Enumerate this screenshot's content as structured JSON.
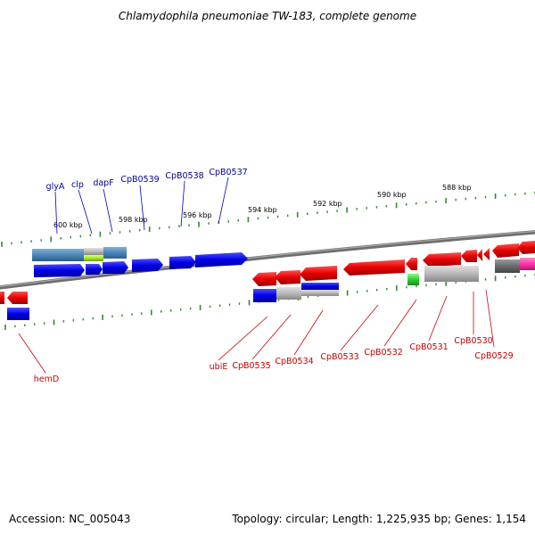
{
  "title": "Chlamydophila pneumoniae TW-183, complete genome",
  "footer": {
    "accession": "Accession: NC_005043",
    "topology": "Topology: circular; Length: 1,225,935 bp; Genes: 1,154"
  },
  "colors": {
    "forward": "#0000e6",
    "reverse": "#e60000",
    "steel": "#4a86b8",
    "gray": "#b8b8b8",
    "dark_gray": "#6a6a6a",
    "green": "#33cc33",
    "magenta": "#ff33aa",
    "tick": "#2e8b2e",
    "axis": "#808080"
  },
  "kbp_labels": [
    "600 kbp",
    "598 kbp",
    "596 kbp",
    "594 kbp",
    "592 kbp",
    "590 kbp",
    "588 kbp"
  ],
  "top_labels": [
    "glyA",
    "clp",
    "dapF",
    "CpB0539",
    "CpB0538",
    "CpB0537"
  ],
  "bottom_labels": [
    "hemD",
    "ubiE",
    "CpB0535",
    "CpB0534",
    "CpB0533",
    "CpB0532",
    "CpB0531",
    "CpB0530",
    "CpB0529"
  ]
}
